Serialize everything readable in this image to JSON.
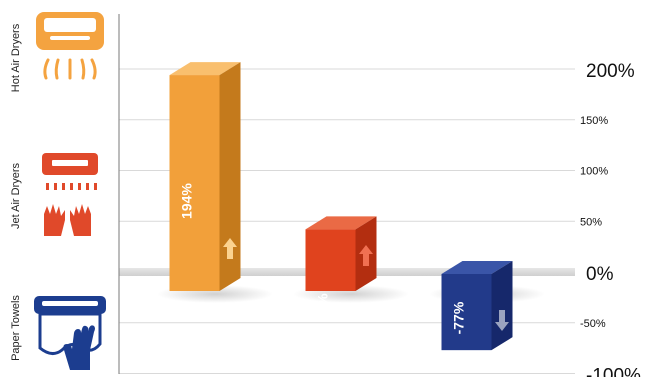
{
  "chart_data": {
    "type": "bar",
    "categories": [
      "Hot Air Dryers",
      "Jet Air Dryers",
      "Paper Towels"
    ],
    "values": [
      194,
      42,
      -77
    ],
    "data_labels": [
      "194%",
      "42%",
      "-77%"
    ],
    "y_ticks": [
      {
        "value": 200,
        "label": "200%",
        "major": true
      },
      {
        "value": 150,
        "label": "150%",
        "major": false
      },
      {
        "value": 100,
        "label": "100%",
        "major": false
      },
      {
        "value": 50,
        "label": "50%",
        "major": false
      },
      {
        "value": 0,
        "label": "0%",
        "major": true
      },
      {
        "value": -50,
        "label": "-50%",
        "major": false
      },
      {
        "value": -100,
        "label": "-100%",
        "major": true
      }
    ],
    "ylim": [
      -100,
      200
    ],
    "grid": true,
    "arrows": [
      "up",
      "up",
      "down"
    ],
    "bar_colors": [
      {
        "front": "#f2a03a",
        "side": "#c47a1c",
        "top": "#f9bf6e",
        "arrow": "#fbd28f"
      },
      {
        "front": "#e0431e",
        "side": "#b32e10",
        "top": "#ea6a45",
        "arrow": "#f07052"
      },
      {
        "front": "#223a8a",
        "side": "#16286b",
        "top": "#3a55a8",
        "arrow": "#9aa3bf"
      }
    ],
    "icon_colors": {
      "hot": "#f4a340",
      "jet": "#e0492a",
      "paper": "#1c3d8f"
    }
  }
}
